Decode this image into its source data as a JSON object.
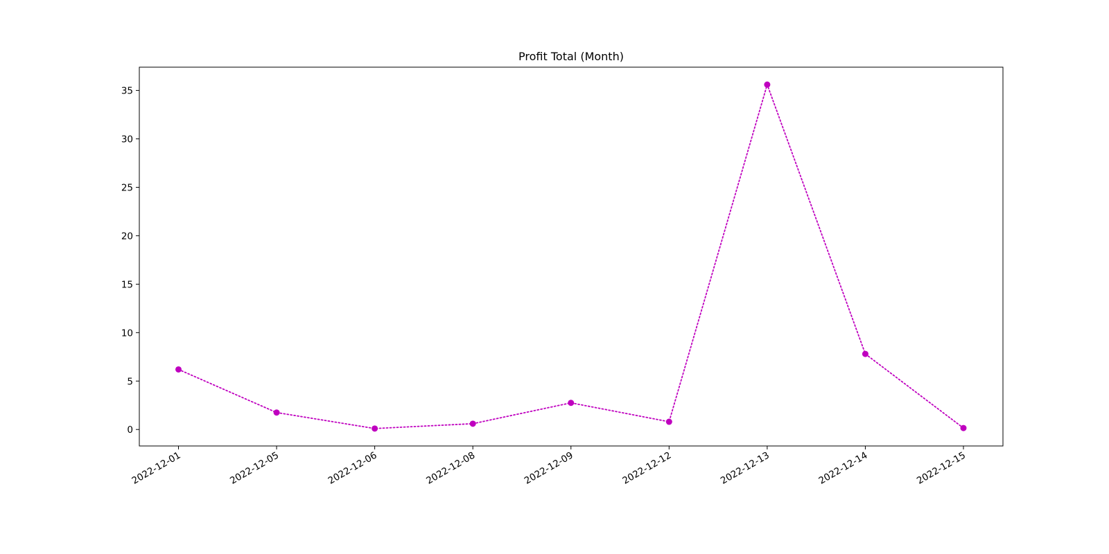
{
  "chart_data": {
    "type": "line",
    "title": "Profit Total (Month)",
    "xlabel": "",
    "ylabel": "",
    "categories": [
      "2022-12-01",
      "2022-12-05",
      "2022-12-06",
      "2022-12-08",
      "2022-12-09",
      "2022-12-12",
      "2022-12-13",
      "2022-12-14",
      "2022-12-15"
    ],
    "series": [
      {
        "values": [
          6.2,
          1.75,
          0.1,
          0.6,
          2.75,
          0.8,
          35.6,
          7.8,
          0.15
        ],
        "color": "#bf00bf",
        "line_style": "dotted",
        "marker": "circle"
      }
    ],
    "ylim": [
      -1.7,
      37.4
    ],
    "yticks": [
      0,
      5,
      10,
      15,
      20,
      25,
      30,
      35
    ],
    "grid": false,
    "legend": "none"
  }
}
